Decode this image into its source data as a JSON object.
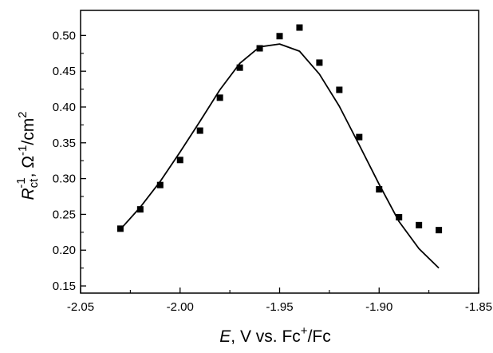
{
  "chart_data": {
    "type": "scatter",
    "xlabel": {
      "var": "E",
      "text_before_sup": ", V vs. Fc",
      "sup": "+",
      "text_after_sup": "/Fc"
    },
    "ylabel": {
      "var": "R",
      "sub": "ct",
      "sup1": "-1",
      "unit_base": ", Ω",
      "sup2": "-1",
      "unit_cm": "/cm",
      "sup3": "2"
    },
    "xlim": [
      -2.05,
      -1.85
    ],
    "ylim": [
      0.14,
      0.535
    ],
    "x_ticks": [
      -2.05,
      -2.0,
      -1.95,
      -1.9,
      -1.85
    ],
    "x_tick_labels": [
      "-2.05",
      "-2.00",
      "-1.95",
      "-1.90",
      "-1.85"
    ],
    "y_ticks": [
      0.15,
      0.2,
      0.25,
      0.3,
      0.35,
      0.4,
      0.45,
      0.5
    ],
    "y_tick_labels": [
      "0.15",
      "0.20",
      "0.25",
      "0.30",
      "0.35",
      "0.40",
      "0.45",
      "0.50"
    ],
    "grid": false,
    "legend": "none",
    "colors": {
      "marker": "#000000",
      "line": "#000000"
    },
    "series": [
      {
        "kind": "points",
        "marker": "square",
        "x": [
          -2.03,
          -2.02,
          -2.01,
          -2.0,
          -1.99,
          -1.98,
          -1.97,
          -1.96,
          -1.95,
          -1.94,
          -1.93,
          -1.92,
          -1.91,
          -1.9,
          -1.89,
          -1.88,
          -1.87
        ],
        "y": [
          0.23,
          0.257,
          0.291,
          0.326,
          0.367,
          0.413,
          0.455,
          0.482,
          0.499,
          0.511,
          0.462,
          0.424,
          0.358,
          0.285,
          0.246,
          0.235,
          0.228
        ]
      },
      {
        "kind": "line",
        "x": [
          -2.03,
          -2.02,
          -2.01,
          -2.0,
          -1.99,
          -1.98,
          -1.97,
          -1.96,
          -1.95,
          -1.94,
          -1.93,
          -1.92,
          -1.91,
          -1.9,
          -1.89,
          -1.88,
          -1.87
        ],
        "y": [
          0.229,
          0.26,
          0.296,
          0.337,
          0.38,
          0.424,
          0.461,
          0.484,
          0.488,
          0.478,
          0.446,
          0.401,
          0.347,
          0.292,
          0.24,
          0.202,
          0.175
        ]
      }
    ]
  }
}
